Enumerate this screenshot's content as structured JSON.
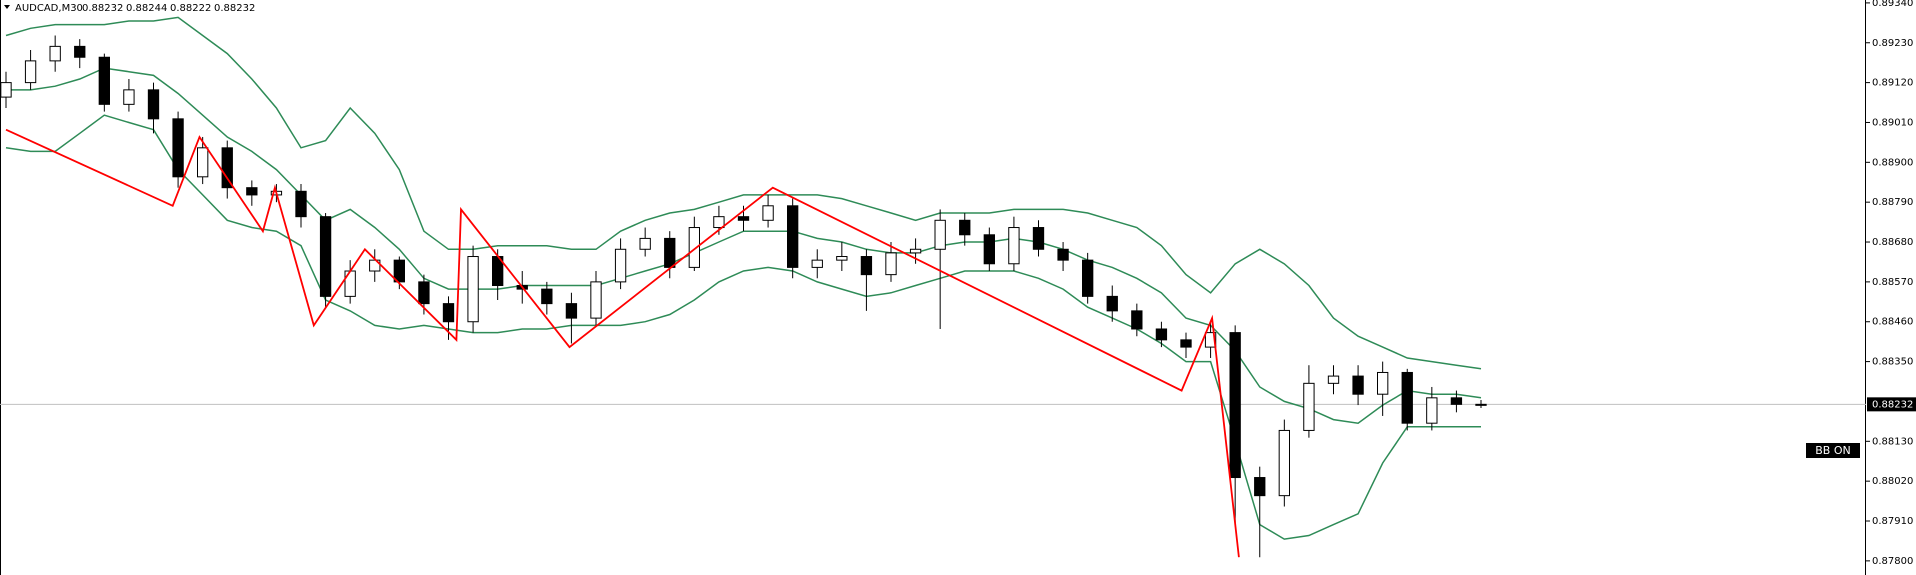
{
  "chart_data": {
    "type": "candlestick",
    "symbol": "AUDCAD,M30",
    "indicator_label": "BB ON",
    "bull_color": "#ffffff",
    "bear_color": "#000000",
    "ylim": [
      0.87761,
      0.89348
    ],
    "yticks": [
      {
        "value": 0.8934,
        "label": "0.89340"
      },
      {
        "value": 0.8923,
        "label": "0.89230"
      },
      {
        "value": 0.8912,
        "label": "0.89120"
      },
      {
        "value": 0.8901,
        "label": "0.89010"
      },
      {
        "value": 0.889,
        "label": "0.88900"
      },
      {
        "value": 0.8879,
        "label": "0.88790"
      },
      {
        "value": 0.8868,
        "label": "0.88680"
      },
      {
        "value": 0.8857,
        "label": "0.88570"
      },
      {
        "value": 0.8846,
        "label": "0.88460"
      },
      {
        "value": 0.8835,
        "label": "0.88350"
      },
      {
        "value": 0.8813,
        "label": "0.88130"
      },
      {
        "value": 0.8802,
        "label": "0.88020"
      },
      {
        "value": 0.8791,
        "label": "0.87910"
      },
      {
        "value": 0.878,
        "label": "0.87800"
      }
    ],
    "candles": {
      "open": [
        0.8908,
        0.8912,
        0.8918,
        0.8922,
        0.8919,
        0.8906,
        0.891,
        0.8902,
        0.8886,
        0.8894,
        0.8883,
        0.8881,
        0.8882,
        0.8875,
        0.8853,
        0.886,
        0.8863,
        0.8857,
        0.8851,
        0.8846,
        0.8864,
        0.8856,
        0.8855,
        0.8851,
        0.8847,
        0.8857,
        0.8866,
        0.8869,
        0.8861,
        0.8872,
        0.8875,
        0.8874,
        0.8878,
        0.8861,
        0.8863,
        0.8864,
        0.8859,
        0.8865,
        0.8866,
        0.8874,
        0.887,
        0.8862,
        0.8872,
        0.8866,
        0.8863,
        0.8853,
        0.8849,
        0.8844,
        0.8841,
        0.8839,
        0.8843,
        0.8803,
        0.8798,
        0.8816,
        0.8829,
        0.8831,
        0.8826,
        0.8832,
        0.8818,
        0.8825,
        0.88232
      ],
      "high": [
        0.8915,
        0.8921,
        0.8925,
        0.8924,
        0.892,
        0.8913,
        0.8912,
        0.8904,
        0.8897,
        0.8896,
        0.8885,
        0.8884,
        0.8884,
        0.8876,
        0.8863,
        0.8866,
        0.8864,
        0.8859,
        0.8853,
        0.8867,
        0.8866,
        0.886,
        0.8857,
        0.8854,
        0.886,
        0.8869,
        0.8872,
        0.8871,
        0.8875,
        0.8878,
        0.8878,
        0.8881,
        0.888,
        0.8866,
        0.8868,
        0.8866,
        0.8868,
        0.8869,
        0.8877,
        0.8876,
        0.8872,
        0.8875,
        0.8874,
        0.8868,
        0.8865,
        0.8856,
        0.8851,
        0.8846,
        0.8843,
        0.8846,
        0.8845,
        0.8806,
        0.8819,
        0.8834,
        0.8834,
        0.8834,
        0.8835,
        0.8833,
        0.8828,
        0.8827,
        0.88244
      ],
      "low": [
        0.8905,
        0.891,
        0.8915,
        0.8916,
        0.8904,
        0.8904,
        0.8898,
        0.8883,
        0.8884,
        0.888,
        0.8878,
        0.8879,
        0.8872,
        0.885,
        0.8851,
        0.8857,
        0.8855,
        0.8848,
        0.8841,
        0.8843,
        0.8852,
        0.8851,
        0.8848,
        0.884,
        0.8845,
        0.8855,
        0.8864,
        0.8858,
        0.886,
        0.887,
        0.8871,
        0.8872,
        0.8858,
        0.8858,
        0.886,
        0.8849,
        0.8857,
        0.8862,
        0.8844,
        0.8867,
        0.886,
        0.886,
        0.8864,
        0.886,
        0.8851,
        0.8846,
        0.8842,
        0.8839,
        0.8836,
        0.8836,
        0.879,
        0.8781,
        0.8795,
        0.8814,
        0.8826,
        0.8823,
        0.882,
        0.8816,
        0.8816,
        0.8821,
        0.88222
      ],
      "close": [
        0.8912,
        0.8918,
        0.8922,
        0.8919,
        0.8906,
        0.891,
        0.8902,
        0.8886,
        0.8894,
        0.8883,
        0.8881,
        0.8882,
        0.8875,
        0.8853,
        0.886,
        0.8863,
        0.8857,
        0.8851,
        0.8846,
        0.8864,
        0.8856,
        0.8855,
        0.8851,
        0.8847,
        0.8857,
        0.8866,
        0.8869,
        0.8861,
        0.8872,
        0.8875,
        0.8874,
        0.8878,
        0.8861,
        0.8863,
        0.8864,
        0.8859,
        0.8865,
        0.8866,
        0.8874,
        0.887,
        0.8862,
        0.8872,
        0.8866,
        0.8863,
        0.8853,
        0.8849,
        0.8844,
        0.8841,
        0.8839,
        0.8843,
        0.8803,
        0.8798,
        0.8816,
        0.8829,
        0.8831,
        0.8826,
        0.8832,
        0.8818,
        0.8825,
        0.88232,
        0.88232
      ]
    },
    "series": [
      {
        "color": "#2e8b57",
        "values": [
          0.8925,
          0.8927,
          0.8928,
          0.8928,
          0.8928,
          0.8929,
          0.8929,
          0.893,
          0.8925,
          0.892,
          0.8913,
          0.8905,
          0.8894,
          0.8896,
          0.8905,
          0.8898,
          0.8888,
          0.8871,
          0.8866,
          0.8866,
          0.8867,
          0.8867,
          0.8867,
          0.8866,
          0.8866,
          0.8871,
          0.8874,
          0.8876,
          0.8877,
          0.8879,
          0.8881,
          0.8881,
          0.8881,
          0.8881,
          0.888,
          0.8878,
          0.8876,
          0.8874,
          0.8876,
          0.8876,
          0.8876,
          0.8877,
          0.8877,
          0.8877,
          0.8876,
          0.8874,
          0.8872,
          0.8867,
          0.8859,
          0.8854,
          0.8862,
          0.8866,
          0.8862,
          0.8856,
          0.8847,
          0.8842,
          0.8839,
          0.8836,
          0.8835,
          0.8834,
          0.8833
        ]
      },
      {
        "color": "#2e8b57",
        "values": [
          0.891,
          0.891,
          0.8911,
          0.8913,
          0.8916,
          0.8915,
          0.8914,
          0.8909,
          0.8903,
          0.8897,
          0.8893,
          0.8888,
          0.8881,
          0.8874,
          0.8877,
          0.8872,
          0.8866,
          0.8858,
          0.8855,
          0.8855,
          0.8855,
          0.8856,
          0.8856,
          0.8856,
          0.8856,
          0.8858,
          0.886,
          0.8862,
          0.8865,
          0.8868,
          0.8871,
          0.8871,
          0.8871,
          0.8869,
          0.8868,
          0.8866,
          0.8865,
          0.8865,
          0.8867,
          0.8868,
          0.8868,
          0.8869,
          0.8868,
          0.8866,
          0.8863,
          0.8861,
          0.8858,
          0.8854,
          0.8847,
          0.8845,
          0.8838,
          0.8828,
          0.8824,
          0.8822,
          0.8819,
          0.8818,
          0.8823,
          0.8827,
          0.8826,
          0.8826,
          0.8825
        ]
      },
      {
        "color": "#2e8b57",
        "values": [
          0.8894,
          0.8893,
          0.8893,
          0.8898,
          0.8903,
          0.8901,
          0.8899,
          0.8888,
          0.8881,
          0.8874,
          0.8872,
          0.8871,
          0.8867,
          0.8852,
          0.8849,
          0.8845,
          0.8844,
          0.8845,
          0.8844,
          0.8843,
          0.8843,
          0.8844,
          0.8844,
          0.8845,
          0.8845,
          0.8845,
          0.8846,
          0.8848,
          0.8852,
          0.8857,
          0.886,
          0.8861,
          0.886,
          0.8857,
          0.8855,
          0.8853,
          0.8854,
          0.8856,
          0.8858,
          0.886,
          0.886,
          0.886,
          0.8858,
          0.8855,
          0.885,
          0.8847,
          0.8844,
          0.884,
          0.8835,
          0.8835,
          0.8813,
          0.879,
          0.8786,
          0.8787,
          0.879,
          0.8793,
          0.8807,
          0.8817,
          0.8817,
          0.8817,
          0.8817
        ]
      }
    ],
    "zigzag": {
      "color": "#ff0000",
      "x": [
        0,
        6.78,
        7.87,
        10.45,
        10.94,
        12.52,
        14.6,
        18.32,
        18.51,
        22.92,
        31.19,
        47.82,
        49.06,
        50.15
      ],
      "values": [
        0.8899,
        0.8878,
        0.8897,
        0.8871,
        0.8883,
        0.8845,
        0.8866,
        0.8841,
        0.8877,
        0.8839,
        0.8883,
        0.8827,
        0.8847,
        0.8781
      ]
    }
  }
}
